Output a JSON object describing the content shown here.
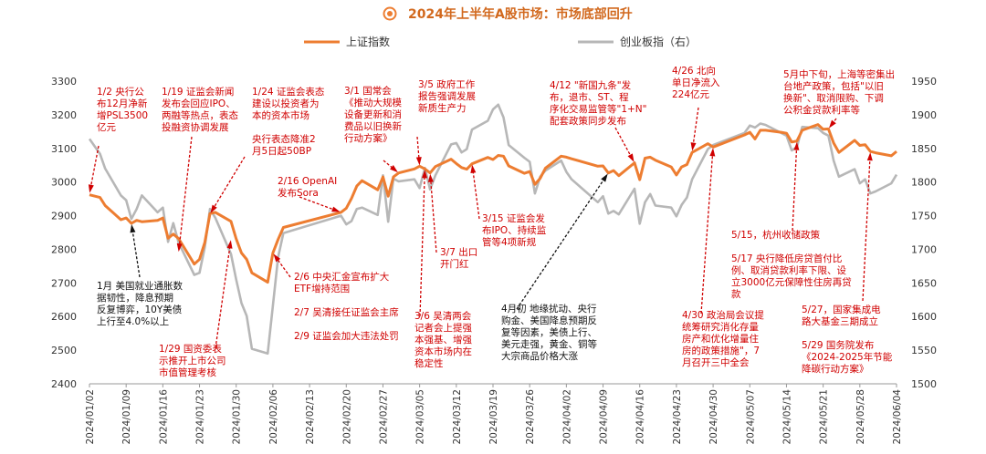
{
  "chart_data": {
    "type": "line",
    "title": "2024年上半年A股市场：市场底部回升",
    "legend": [
      "上证指数",
      "创业板指（右）"
    ],
    "legend_placement": "top-center",
    "colors": {
      "sse": "#ed7d31",
      "gem": "#b7b7b7",
      "title": "#d2691e",
      "annotation": "#d00000"
    },
    "left_axis": {
      "ylim": [
        2400,
        3300
      ],
      "ticks": [
        2400,
        2500,
        2600,
        2700,
        2800,
        2900,
        3000,
        3100,
        3200,
        3300
      ]
    },
    "right_axis": {
      "ylim": [
        1500,
        1950
      ],
      "ticks": [
        1500,
        1550,
        1600,
        1650,
        1700,
        1750,
        1800,
        1850,
        1900,
        1950
      ]
    },
    "x_ticks": [
      "2024/01/02",
      "2024/01/09",
      "2024/01/16",
      "2024/01/23",
      "2024/01/30",
      "2024/02/06",
      "2024/02/13",
      "2024/02/20",
      "2024/02/27",
      "2024/03/05",
      "2024/03/12",
      "2024/03/19",
      "2024/03/26",
      "2024/04/02",
      "2024/04/09",
      "2024/04/16",
      "2024/04/23",
      "2024/04/30",
      "2024/05/07",
      "2024/05/14",
      "2024/05/21",
      "2024/05/28",
      "2024/06/04"
    ],
    "series": [
      {
        "name": "上证指数",
        "axis": "left",
        "points": [
          [
            "2024/01/02",
            2962
          ],
          [
            "2024/01/04",
            2954
          ],
          [
            "2024/01/05",
            2930
          ],
          [
            "2024/01/08",
            2888
          ],
          [
            "2024/01/09",
            2893
          ],
          [
            "2024/01/10",
            2877
          ],
          [
            "2024/01/11",
            2886
          ],
          [
            "2024/01/12",
            2882
          ],
          [
            "2024/01/15",
            2886
          ],
          [
            "2024/01/16",
            2893
          ],
          [
            "2024/01/17",
            2833
          ],
          [
            "2024/01/18",
            2845
          ],
          [
            "2024/01/19",
            2832
          ],
          [
            "2024/01/22",
            2756
          ],
          [
            "2024/01/23",
            2770
          ],
          [
            "2024/01/24",
            2820
          ],
          [
            "2024/01/25",
            2906
          ],
          [
            "2024/01/26",
            2910
          ],
          [
            "2024/01/29",
            2883
          ],
          [
            "2024/01/30",
            2831
          ],
          [
            "2024/01/31",
            2789
          ],
          [
            "2024/02/01",
            2770
          ],
          [
            "2024/02/02",
            2730
          ],
          [
            "2024/02/05",
            2702
          ],
          [
            "2024/02/06",
            2789
          ],
          [
            "2024/02/07",
            2829
          ],
          [
            "2024/02/08",
            2865
          ],
          [
            "2024/02/19",
            2910
          ],
          [
            "2024/02/20",
            2922
          ],
          [
            "2024/02/21",
            2951
          ],
          [
            "2024/02/22",
            2988
          ],
          [
            "2024/02/23",
            3004
          ],
          [
            "2024/02/26",
            2977
          ],
          [
            "2024/02/27",
            3015
          ],
          [
            "2024/02/28",
            2958
          ],
          [
            "2024/02/29",
            3015
          ],
          [
            "2024/03/01",
            3027
          ],
          [
            "2024/03/04",
            3039
          ],
          [
            "2024/03/05",
            3047
          ],
          [
            "2024/03/06",
            3039
          ],
          [
            "2024/03/07",
            3027
          ],
          [
            "2024/03/08",
            3046
          ],
          [
            "2024/03/11",
            3068
          ],
          [
            "2024/03/12",
            3055
          ],
          [
            "2024/03/13",
            3043
          ],
          [
            "2024/03/14",
            3038
          ],
          [
            "2024/03/15",
            3054
          ],
          [
            "2024/03/18",
            3073
          ],
          [
            "2024/03/19",
            3067
          ],
          [
            "2024/03/20",
            3079
          ],
          [
            "2024/03/21",
            3077
          ],
          [
            "2024/03/22",
            3048
          ],
          [
            "2024/03/25",
            3026
          ],
          [
            "2024/03/26",
            3031
          ],
          [
            "2024/03/27",
            2993
          ],
          [
            "2024/03/28",
            3011
          ],
          [
            "2024/03/29",
            3041
          ],
          [
            "2024/04/01",
            3077
          ],
          [
            "2024/04/02",
            3074
          ],
          [
            "2024/04/03",
            3069
          ],
          [
            "2024/04/08",
            3047
          ],
          [
            "2024/04/09",
            3048
          ],
          [
            "2024/04/10",
            3027
          ],
          [
            "2024/04/11",
            3034
          ],
          [
            "2024/04/12",
            3019
          ],
          [
            "2024/04/15",
            3057
          ],
          [
            "2024/04/16",
            3007
          ],
          [
            "2024/04/17",
            3071
          ],
          [
            "2024/04/18",
            3074
          ],
          [
            "2024/04/19",
            3065
          ],
          [
            "2024/04/22",
            3045
          ],
          [
            "2024/04/23",
            3021
          ],
          [
            "2024/04/24",
            3045
          ],
          [
            "2024/04/25",
            3052
          ],
          [
            "2024/04/26",
            3088
          ],
          [
            "2024/04/29",
            3114
          ],
          [
            "2024/04/30",
            3104
          ],
          [
            "2024/05/06",
            3140
          ],
          [
            "2024/05/07",
            3148
          ],
          [
            "2024/05/08",
            3128
          ],
          [
            "2024/05/09",
            3154
          ],
          [
            "2024/05/10",
            3154
          ],
          [
            "2024/05/13",
            3148
          ],
          [
            "2024/05/14",
            3145
          ],
          [
            "2024/05/15",
            3119
          ],
          [
            "2024/05/16",
            3122
          ],
          [
            "2024/05/17",
            3154
          ],
          [
            "2024/05/20",
            3171
          ],
          [
            "2024/05/21",
            3157
          ],
          [
            "2024/05/22",
            3158
          ],
          [
            "2024/05/23",
            3116
          ],
          [
            "2024/05/24",
            3088
          ],
          [
            "2024/05/27",
            3124
          ],
          [
            "2024/05/28",
            3109
          ],
          [
            "2024/05/29",
            3111
          ],
          [
            "2024/05/30",
            3091
          ],
          [
            "2024/05/31",
            3087
          ],
          [
            "2024/06/03",
            3078
          ],
          [
            "2024/06/04",
            3091
          ]
        ]
      },
      {
        "name": "创业板指（右）",
        "axis": "right",
        "points": [
          [
            "2024/01/02",
            1864
          ],
          [
            "2024/01/04",
            1842
          ],
          [
            "2024/01/05",
            1820
          ],
          [
            "2024/01/08",
            1780
          ],
          [
            "2024/01/09",
            1773
          ],
          [
            "2024/01/10",
            1745
          ],
          [
            "2024/01/11",
            1760
          ],
          [
            "2024/01/12",
            1780
          ],
          [
            "2024/01/15",
            1755
          ],
          [
            "2024/01/16",
            1762
          ],
          [
            "2024/01/17",
            1711
          ],
          [
            "2024/01/18",
            1739
          ],
          [
            "2024/01/19",
            1710
          ],
          [
            "2024/01/22",
            1662
          ],
          [
            "2024/01/23",
            1665
          ],
          [
            "2024/01/24",
            1703
          ],
          [
            "2024/01/25",
            1760
          ],
          [
            "2024/01/26",
            1747
          ],
          [
            "2024/01/29",
            1693
          ],
          [
            "2024/01/30",
            1655
          ],
          [
            "2024/01/31",
            1620
          ],
          [
            "2024/02/01",
            1601
          ],
          [
            "2024/02/02",
            1552
          ],
          [
            "2024/02/05",
            1545
          ],
          [
            "2024/02/06",
            1616
          ],
          [
            "2024/02/07",
            1688
          ],
          [
            "2024/02/08",
            1724
          ],
          [
            "2024/02/19",
            1750
          ],
          [
            "2024/02/20",
            1737
          ],
          [
            "2024/02/21",
            1742
          ],
          [
            "2024/02/22",
            1760
          ],
          [
            "2024/02/23",
            1762
          ],
          [
            "2024/02/26",
            1751
          ],
          [
            "2024/02/27",
            1810
          ],
          [
            "2024/02/28",
            1741
          ],
          [
            "2024/02/29",
            1805
          ],
          [
            "2024/03/01",
            1801
          ],
          [
            "2024/03/04",
            1804
          ],
          [
            "2024/03/05",
            1791
          ],
          [
            "2024/03/06",
            1821
          ],
          [
            "2024/03/07",
            1789
          ],
          [
            "2024/03/08",
            1810
          ],
          [
            "2024/03/11",
            1856
          ],
          [
            "2024/03/12",
            1858
          ],
          [
            "2024/03/13",
            1844
          ],
          [
            "2024/03/14",
            1849
          ],
          [
            "2024/03/15",
            1878
          ],
          [
            "2024/03/18",
            1891
          ],
          [
            "2024/03/19",
            1908
          ],
          [
            "2024/03/20",
            1915
          ],
          [
            "2024/03/21",
            1896
          ],
          [
            "2024/03/22",
            1855
          ],
          [
            "2024/03/25",
            1836
          ],
          [
            "2024/03/26",
            1830
          ],
          [
            "2024/03/27",
            1783
          ],
          [
            "2024/03/28",
            1808
          ],
          [
            "2024/03/29",
            1817
          ],
          [
            "2024/04/01",
            1832
          ],
          [
            "2024/04/02",
            1815
          ],
          [
            "2024/04/03",
            1804
          ],
          [
            "2024/04/08",
            1770
          ],
          [
            "2024/04/09",
            1779
          ],
          [
            "2024/04/10",
            1753
          ],
          [
            "2024/04/11",
            1757
          ],
          [
            "2024/04/12",
            1752
          ],
          [
            "2024/04/15",
            1790
          ],
          [
            "2024/04/16",
            1738
          ],
          [
            "2024/04/17",
            1770
          ],
          [
            "2024/04/18",
            1782
          ],
          [
            "2024/04/19",
            1765
          ],
          [
            "2024/04/22",
            1762
          ],
          [
            "2024/04/23",
            1749
          ],
          [
            "2024/04/24",
            1766
          ],
          [
            "2024/04/25",
            1777
          ],
          [
            "2024/04/26",
            1804
          ],
          [
            "2024/04/29",
            1849
          ],
          [
            "2024/04/30",
            1855
          ],
          [
            "2024/05/06",
            1873
          ],
          [
            "2024/05/07",
            1884
          ],
          [
            "2024/05/08",
            1881
          ],
          [
            "2024/05/09",
            1887
          ],
          [
            "2024/05/10",
            1885
          ],
          [
            "2024/05/13",
            1873
          ],
          [
            "2024/05/14",
            1869
          ],
          [
            "2024/05/15",
            1847
          ],
          [
            "2024/05/16",
            1852
          ],
          [
            "2024/05/17",
            1882
          ],
          [
            "2024/05/20",
            1880
          ],
          [
            "2024/05/21",
            1873
          ],
          [
            "2024/05/22",
            1869
          ],
          [
            "2024/05/23",
            1832
          ],
          [
            "2024/05/24",
            1808
          ],
          [
            "2024/05/27",
            1819
          ],
          [
            "2024/05/28",
            1798
          ],
          [
            "2024/05/29",
            1804
          ],
          [
            "2024/05/30",
            1783
          ],
          [
            "2024/05/31",
            1786
          ],
          [
            "2024/06/03",
            1798
          ],
          [
            "2024/06/04",
            1811
          ]
        ]
      }
    ],
    "annotations": [
      {
        "id": "a1",
        "lines": [
          "1/2 央行公",
          "布12月净新",
          "增PSL3500",
          "亿元"
        ],
        "color": "red",
        "target": [
          "2024/01/02",
          2965
        ]
      },
      {
        "id": "a2",
        "lines": [
          "1/19 证监会新闻",
          "发布会回应IPO、",
          "两融等热点，表态",
          "投融资协调发展"
        ],
        "color": "red",
        "target": [
          "2024/01/19",
          2790
        ]
      },
      {
        "id": "a3",
        "lines": [
          "1/24 证监会表态",
          "建设以投资者为",
          "本的资本市场",
          "",
          "央行表态降准2",
          "月5日起50BP"
        ],
        "color": "red",
        "target": [
          "2024/01/25",
          2905
        ]
      },
      {
        "id": "a4",
        "lines": [
          "3/1 国常会",
          "《推动大规模",
          "设备更新和消",
          "费品以旧换新",
          "行动方案》"
        ],
        "color": "red",
        "target": [
          "2024/03/01",
          3027
        ]
      },
      {
        "id": "a5",
        "lines": [
          "3/5 政府工作",
          "报告强调发展",
          "新质生产力"
        ],
        "color": "red",
        "target": [
          "2024/03/05",
          3047
        ]
      },
      {
        "id": "a6",
        "lines": [
          "4/12 \"新国九条\"发",
          "布，退市、ST、程",
          "序化交易监管等\"1+N\"",
          "配套政策同步发布"
        ],
        "color": "red",
        "target": [
          "2024/04/15",
          3057
        ]
      },
      {
        "id": "a7",
        "lines": [
          "4/26 北向",
          "单日净流入",
          "224亿元"
        ],
        "color": "red",
        "target": [
          "2024/04/26",
          3090
        ]
      },
      {
        "id": "a8",
        "lines": [
          "5月中下旬，上海等密集出",
          "台地产政策，包括\"以旧",
          "换新\"、取消限购、下调",
          "公积金贷款利率等"
        ],
        "color": "red",
        "target": [
          "2024/05/22",
          3158
        ]
      },
      {
        "id": "a9",
        "lines": [
          "2/16 OpenAI",
          "发布Sora"
        ],
        "color": "red",
        "target": [
          "2024/02/19",
          2910
        ]
      },
      {
        "id": "a10",
        "lines": [
          "3/15 证监会发",
          "布IPO、持续监",
          "管等4项新规"
        ],
        "color": "red",
        "target": [
          "2024/03/15",
          3054
        ]
      },
      {
        "id": "a11",
        "lines": [
          "3/7 出口",
          "开门红"
        ],
        "color": "red",
        "target": [
          "2024/03/07",
          3027
        ]
      },
      {
        "id": "a12",
        "lines": [
          "1月 美国就业通胀数",
          "据韧性，降息预期",
          "反复博弈，10Y美债",
          "上行至4.0%以上"
        ],
        "color": "black",
        "target": [
          "2024/01/10",
          2877
        ]
      },
      {
        "id": "a13",
        "lines": [
          "1/29 国资委表",
          "示推开上市公司",
          "市值管理考核"
        ],
        "color": "red",
        "target": [
          "2024/01/29",
          2830
        ]
      },
      {
        "id": "a14",
        "lines": [
          "2/6 中央汇金宣布扩大",
          "ETF增持范围",
          "",
          "2/7 吴清接任证监会主席",
          "",
          "2/9 证监会加大违法处罚"
        ],
        "color": "red",
        "target": [
          "2024/02/06",
          2789
        ]
      },
      {
        "id": "a15",
        "lines": [
          "3/6 吴清两会",
          "记者会上提强",
          "本强基、增强",
          "资本市场内在",
          "稳定性"
        ],
        "color": "red",
        "target": [
          "2024/03/06",
          3039
        ]
      },
      {
        "id": "a16",
        "lines": [
          "4月初 地缘扰动、央行",
          "购金、美国降息预期反",
          "复等因素，美债上行、",
          "美元走强，黄金、铜等",
          "大宗商品价格大涨"
        ],
        "color": "black",
        "target": [
          "2024/04/10",
          3027
        ]
      },
      {
        "id": "a17",
        "lines": [
          "4/30 政治局会议提",
          "统筹研究消化存量",
          "房产和优化增量住",
          "房的政策措施\"，7",
          "月召开三中全会"
        ],
        "color": "red",
        "target": [
          "2024/04/30",
          3104
        ]
      },
      {
        "id": "a18",
        "lines": [
          "5/15，杭州收储政策",
          "",
          "5/17 央行降低房贷首付比",
          "例、取消贷款利率下限、设",
          "立3000亿元保障性住房再贷",
          "款"
        ],
        "color": "red",
        "target": [
          "2024/05/16",
          3122
        ]
      },
      {
        "id": "a19",
        "lines": [
          "5/27，国家集成电",
          "路大基金三期成立",
          "",
          "5/29 国务院发布",
          "《2024-2025年节能",
          "降碳行动方案》"
        ],
        "color": "red",
        "target": [
          "2024/05/30",
          3091
        ]
      }
    ]
  }
}
